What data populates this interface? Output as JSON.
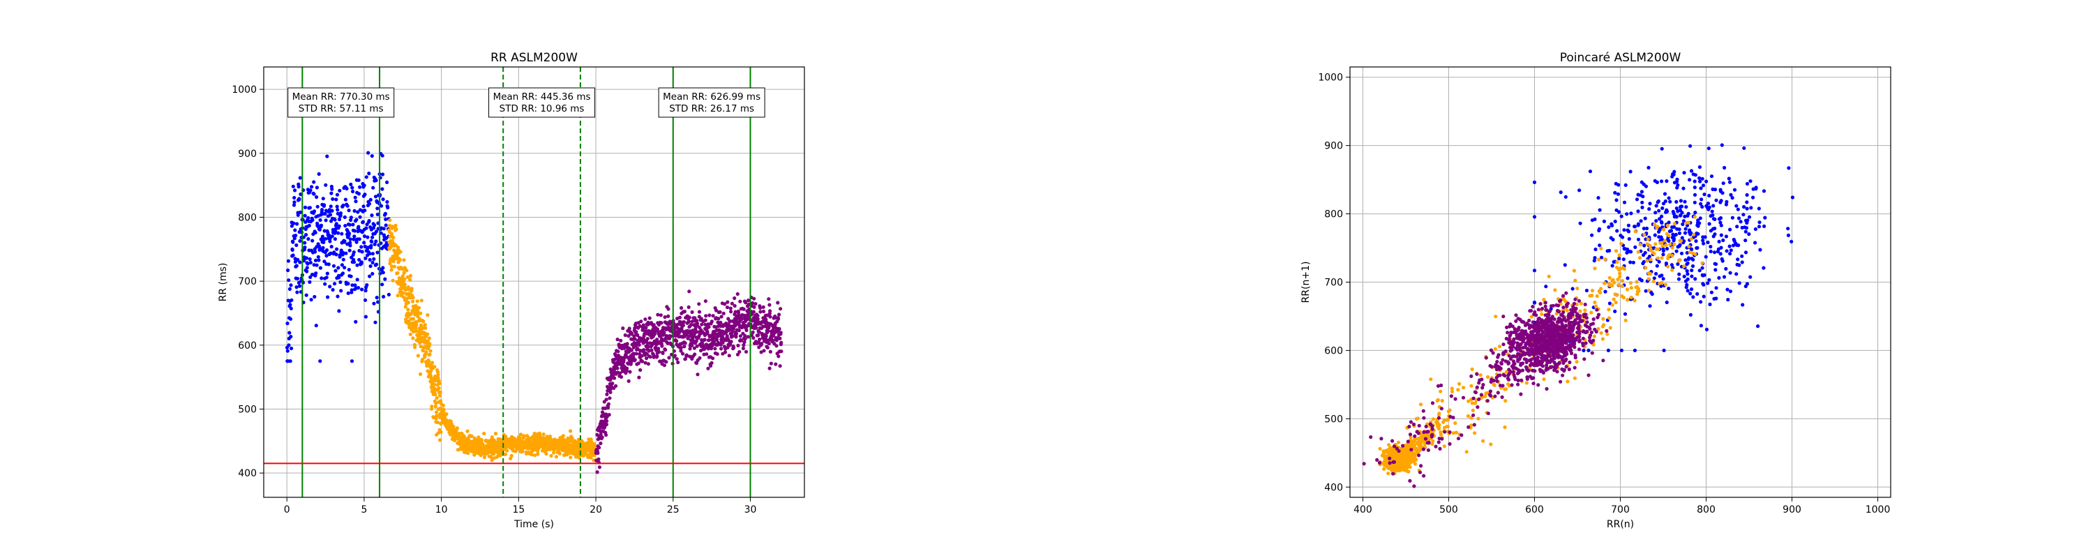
{
  "colors": {
    "pre": "#0000ff",
    "exercise": "#ffa500",
    "recovery": "#800080",
    "vline_solid": "#008000",
    "vline_dashed": "#008000",
    "hline": "#ff0000",
    "grid": "#b0b0b0"
  },
  "chart_data": [
    {
      "type": "scatter",
      "title": "RR ASLM200W",
      "xlabel": "Time (s)",
      "ylabel": "RR (ms)",
      "xlim": [
        -1.5,
        33.5
      ],
      "ylim": [
        362,
        1035
      ],
      "xticks": [
        0,
        5,
        10,
        15,
        20,
        25,
        30
      ],
      "yticks": [
        400,
        500,
        600,
        700,
        800,
        900,
        1000
      ],
      "grid": true,
      "series": [
        {
          "key": "pre",
          "color": "#0000ff",
          "x_range": [
            0,
            6.6
          ],
          "y_mean": 770,
          "y_std": 57
        },
        {
          "key": "exercise",
          "color": "#ffa500",
          "x_range": [
            6.6,
            20.0
          ],
          "trend": [
            [
              6.6,
              780
            ],
            [
              7.5,
              700
            ],
            [
              8.2,
              640
            ],
            [
              9.0,
              600
            ],
            [
              9.6,
              520
            ],
            [
              10.5,
              470
            ],
            [
              11.5,
              445
            ],
            [
              13,
              440
            ],
            [
              15,
              445
            ],
            [
              17,
              445
            ],
            [
              19,
              440
            ],
            [
              20,
              435
            ]
          ]
        },
        {
          "key": "recovery",
          "color": "#800080",
          "x_range": [
            20.0,
            32.0
          ],
          "trend": [
            [
              20.0,
              425
            ],
            [
              20.5,
              480
            ],
            [
              21.0,
              545
            ],
            [
              21.5,
              580
            ],
            [
              22.5,
              600
            ],
            [
              24,
              615
            ],
            [
              26,
              620
            ],
            [
              28,
              615
            ],
            [
              30,
              640
            ],
            [
              32,
              610
            ]
          ]
        }
      ],
      "vlines_solid": [
        1,
        6,
        25,
        30
      ],
      "vlines_dashed": [
        14,
        19
      ],
      "hline": 415,
      "annotations": [
        {
          "x": 3.5,
          "mean": "Mean RR: 770.30 ms",
          "std": "STD RR: 57.11 ms"
        },
        {
          "x": 16.5,
          "mean": "Mean RR: 445.36 ms",
          "std": "STD RR: 10.96 ms"
        },
        {
          "x": 27.5,
          "mean": "Mean RR: 626.99 ms",
          "std": "STD RR: 26.17 ms"
        }
      ]
    },
    {
      "type": "scatter",
      "title": "Poincaré ASLM200W",
      "xlabel": "RR(n)",
      "ylabel": "RR(n+1)",
      "xlim": [
        385,
        1015
      ],
      "ylim": [
        385,
        1015
      ],
      "xticks": [
        400,
        500,
        600,
        700,
        800,
        900,
        1000
      ],
      "yticks": [
        400,
        500,
        600,
        700,
        800,
        900,
        1000
      ],
      "grid": true,
      "series": [
        {
          "key": "pre",
          "color": "#0000ff",
          "center": 770,
          "spread": 57
        },
        {
          "key": "exercise",
          "color": "#ffa500",
          "center": 520,
          "spread": 90
        },
        {
          "key": "recovery",
          "color": "#800080",
          "center": 600,
          "spread": 55
        }
      ]
    }
  ]
}
